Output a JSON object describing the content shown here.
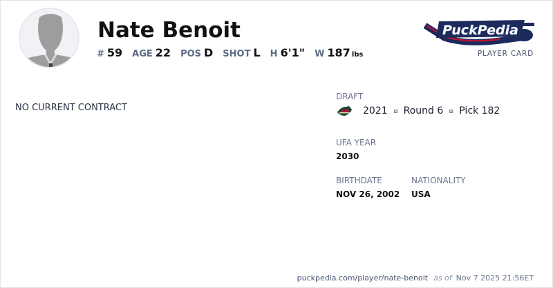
{
  "player": {
    "name": "Nate Benoit",
    "stats": [
      {
        "label": "#",
        "value": "59"
      },
      {
        "label": "AGE",
        "value": "22"
      },
      {
        "label": "POS",
        "value": "D"
      },
      {
        "label": "SHOT",
        "value": "L"
      },
      {
        "label": "H",
        "value": "6'1\""
      },
      {
        "label": "W",
        "value": "187",
        "unit": "lbs"
      }
    ]
  },
  "brand": {
    "logo_text": "PuckPedia",
    "subtitle": "PLAYER CARD"
  },
  "contract": {
    "status": "NO CURRENT CONTRACT"
  },
  "draft": {
    "label": "DRAFT",
    "team_logo": "minnesota-wild-logo",
    "year": "2021",
    "round": "Round 6",
    "pick": "Pick 182"
  },
  "ufa": {
    "label": "UFA YEAR",
    "value": "2030"
  },
  "birthdate": {
    "label": "BIRTHDATE",
    "value": "NOV 26, 2002"
  },
  "nationality": {
    "label": "NATIONALITY",
    "value": "USA"
  },
  "footer": {
    "url": "puckpedia.com/player/nate-benoit",
    "as_of": "as of",
    "timestamp": "Nov 7 2025 21:56ET"
  },
  "colors": {
    "label": "#5d6b86",
    "brand_navy": "#1d2a5c",
    "brand_red": "#c8102e"
  }
}
